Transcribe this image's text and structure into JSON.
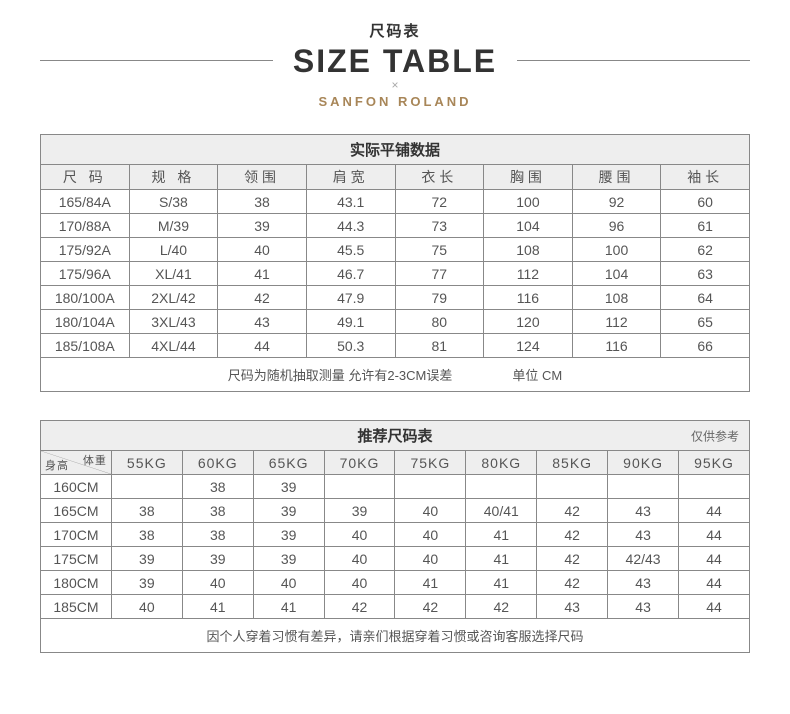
{
  "header": {
    "cn_title": "尺码表",
    "en_title": "SIZE TABLE",
    "x": "×",
    "brand": "SANFON ROLAND"
  },
  "colors": {
    "header_bg": "#eeeeee",
    "border": "#888888",
    "text": "#555555",
    "brand": "#a88658"
  },
  "table1": {
    "title": "实际平铺数据",
    "columns": [
      "尺 码",
      "规 格",
      "领围",
      "肩宽",
      "衣长",
      "胸围",
      "腰围",
      "袖长"
    ],
    "rows": [
      [
        "165/84A",
        "S/38",
        "38",
        "43.1",
        "72",
        "100",
        "92",
        "60"
      ],
      [
        "170/88A",
        "M/39",
        "39",
        "44.3",
        "73",
        "104",
        "96",
        "61"
      ],
      [
        "175/92A",
        "L/40",
        "40",
        "45.5",
        "75",
        "108",
        "100",
        "62"
      ],
      [
        "175/96A",
        "XL/41",
        "41",
        "46.7",
        "77",
        "112",
        "104",
        "63"
      ],
      [
        "180/100A",
        "2XL/42",
        "42",
        "47.9",
        "79",
        "116",
        "108",
        "64"
      ],
      [
        "180/104A",
        "3XL/43",
        "43",
        "49.1",
        "80",
        "120",
        "112",
        "65"
      ],
      [
        "185/108A",
        "4XL/44",
        "44",
        "50.3",
        "81",
        "124",
        "116",
        "66"
      ]
    ],
    "footer_note": "尺码为随机抽取测量 允许有2-3CM误差",
    "footer_unit": "单位 CM"
  },
  "table2": {
    "title": "推荐尺码表",
    "title_aux": "仅供参考",
    "diag_top": "体重",
    "diag_bottom": "身高",
    "weight_cols": [
      "55KG",
      "60KG",
      "65KG",
      "70KG",
      "75KG",
      "80KG",
      "85KG",
      "90KG",
      "95KG"
    ],
    "height_rows": [
      "160CM",
      "165CM",
      "170CM",
      "175CM",
      "180CM",
      "185CM"
    ],
    "data": [
      [
        "",
        "38",
        "39",
        "",
        "",
        "",
        "",
        "",
        ""
      ],
      [
        "38",
        "38",
        "39",
        "39",
        "40",
        "40/41",
        "42",
        "43",
        "44"
      ],
      [
        "38",
        "38",
        "39",
        "40",
        "40",
        "41",
        "42",
        "43",
        "44"
      ],
      [
        "39",
        "39",
        "39",
        "40",
        "40",
        "41",
        "42",
        "42/43",
        "44"
      ],
      [
        "39",
        "40",
        "40",
        "40",
        "41",
        "41",
        "42",
        "43",
        "44"
      ],
      [
        "40",
        "41",
        "41",
        "42",
        "42",
        "42",
        "43",
        "43",
        "44"
      ]
    ],
    "footer_note": "因个人穿着习惯有差异，请亲们根据穿着习惯或咨询客服选择尺码"
  }
}
